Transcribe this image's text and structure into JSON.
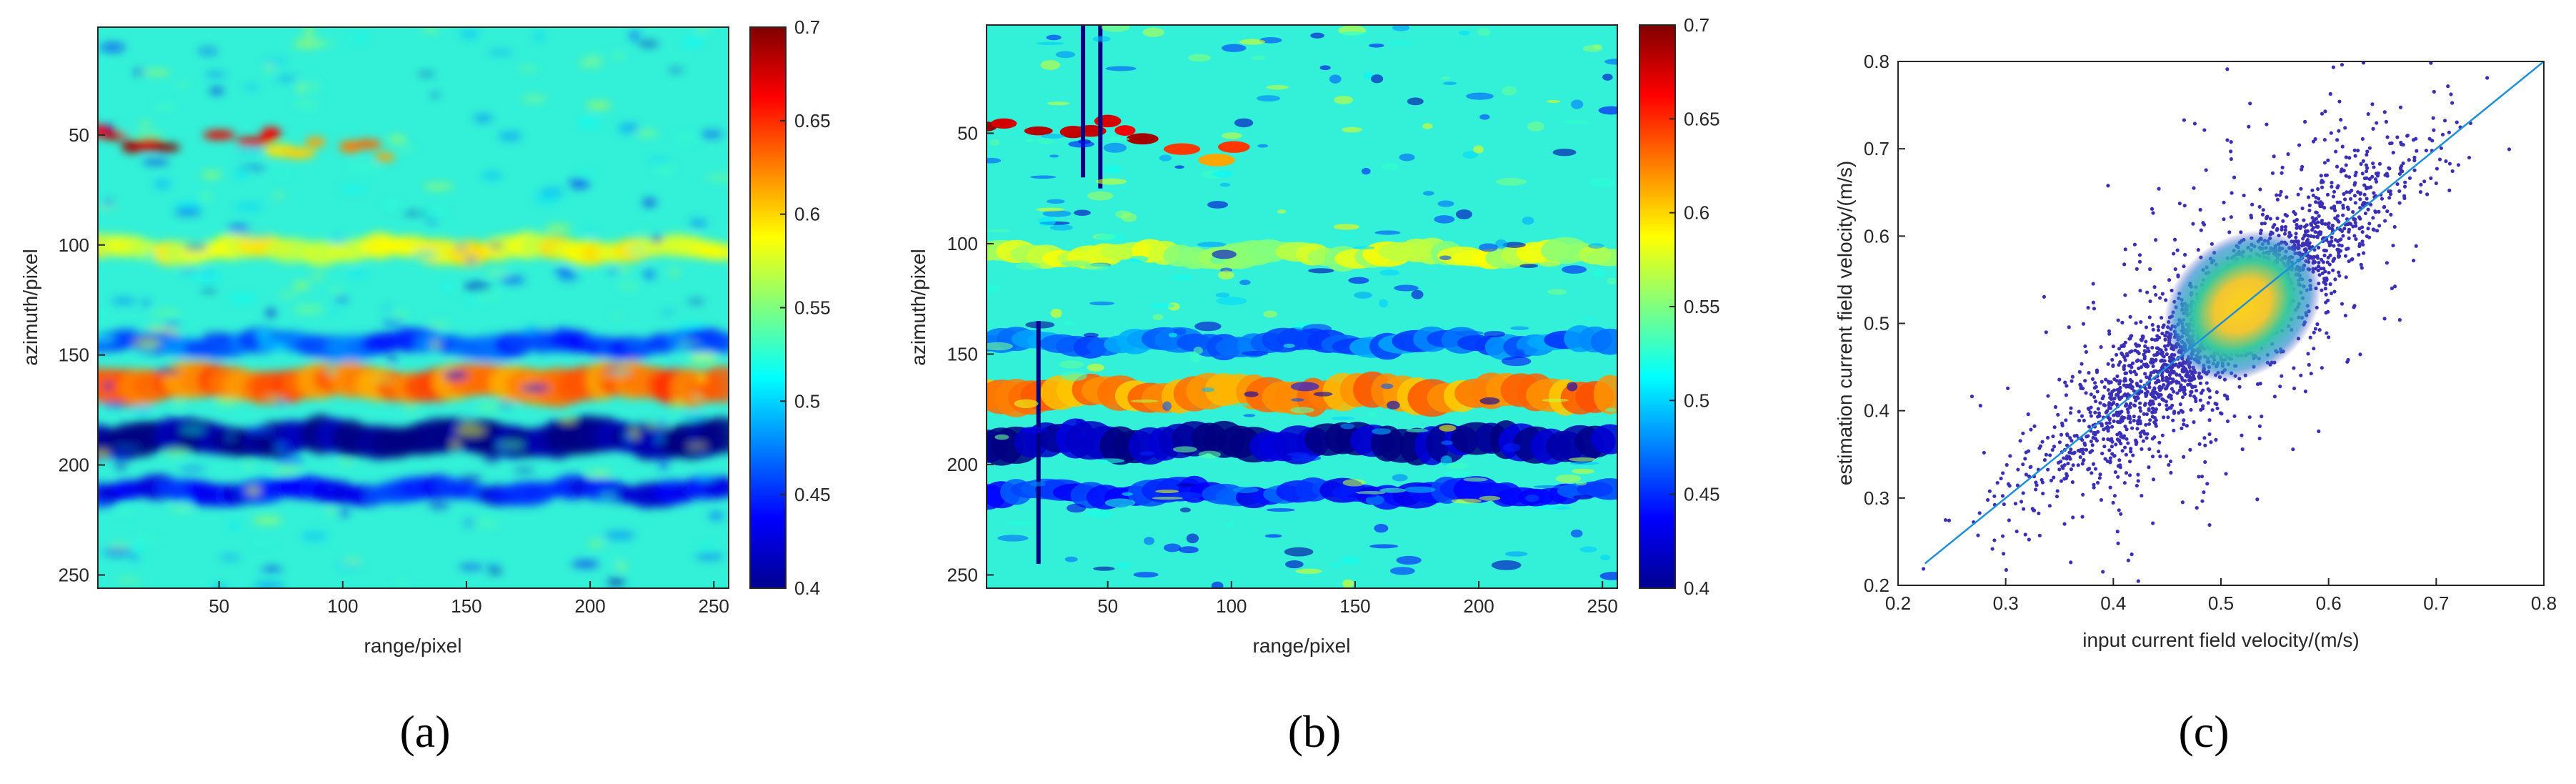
{
  "panels": [
    {
      "label": "(a)"
    },
    {
      "label": "(b)"
    },
    {
      "label": "(c)"
    }
  ],
  "colors": {
    "axis": "#262626",
    "scatter_point": "#3b2fb5",
    "fit_line": "#1f8fd6"
  },
  "chart_data": [
    {
      "type": "heatmap",
      "xlabel": "range/pixel",
      "ylabel": "azimuth/pixel",
      "xlim": [
        1,
        256
      ],
      "ylim": [
        1,
        256
      ],
      "y_reversed": true,
      "xticks": [
        50,
        100,
        150,
        200,
        250
      ],
      "yticks": [
        50,
        100,
        150,
        200,
        250
      ],
      "colormap": "jet",
      "clim": [
        0.4,
        0.7
      ],
      "colorbar_ticks": [
        "0.4",
        "0.45",
        "0.5",
        "0.55",
        "0.6",
        "0.65",
        "0.7"
      ],
      "background_value": 0.5,
      "features": [
        {
          "kind": "band",
          "row": 163,
          "value": 0.63
        },
        {
          "kind": "band",
          "row": 188,
          "value": 0.4
        },
        {
          "kind": "band",
          "row": 212,
          "value": 0.44
        },
        {
          "kind": "band",
          "row": 145,
          "value": 0.46
        },
        {
          "kind": "band",
          "row": 102,
          "value": 0.58
        },
        {
          "kind": "streak",
          "row": 52,
          "col_range": [
            1,
            75
          ],
          "value": 0.7
        },
        {
          "kind": "streak",
          "row": 58,
          "col_range": [
            75,
            130
          ],
          "value": 0.64
        }
      ]
    },
    {
      "type": "heatmap",
      "xlabel": "range/pixel",
      "ylabel": "azimuth/pixel",
      "xlim": [
        1,
        256
      ],
      "ylim": [
        1,
        256
      ],
      "y_reversed": true,
      "xticks": [
        50,
        100,
        150,
        200,
        250
      ],
      "yticks": [
        50,
        100,
        150,
        200,
        250
      ],
      "colormap": "jet",
      "clim": [
        0.4,
        0.7
      ],
      "colorbar_ticks": [
        "0.4",
        "0.45",
        "0.5",
        "0.55",
        "0.6",
        "0.65",
        "0.7"
      ],
      "background_value": 0.5,
      "features": [
        {
          "kind": "band",
          "row": 168,
          "value": 0.62
        },
        {
          "kind": "band",
          "row": 190,
          "value": 0.41
        },
        {
          "kind": "band",
          "row": 213,
          "value": 0.45
        },
        {
          "kind": "band",
          "row": 145,
          "value": 0.47
        },
        {
          "kind": "band",
          "row": 105,
          "value": 0.57
        },
        {
          "kind": "streak",
          "row": 48,
          "col_range": [
            1,
            80
          ],
          "value": 0.7
        },
        {
          "kind": "streak",
          "row": 60,
          "col_range": [
            80,
            120
          ],
          "value": 0.66
        },
        {
          "kind": "vertical",
          "col": 40,
          "row_range": [
            1,
            70
          ],
          "value": 0.4
        },
        {
          "kind": "vertical",
          "col": 47,
          "row_range": [
            1,
            75
          ],
          "value": 0.4
        },
        {
          "kind": "vertical",
          "col": 22,
          "row_range": [
            135,
            245
          ],
          "value": 0.4
        }
      ]
    },
    {
      "type": "scatter",
      "xlabel": "input current field velocity/(m/s)",
      "ylabel": "estimation current field velocity/(m/s)",
      "xlim": [
        0.2,
        0.8
      ],
      "ylim": [
        0.2,
        0.8
      ],
      "xticks": [
        "0.2",
        "0.3",
        "0.4",
        "0.5",
        "0.6",
        "0.7",
        "0.8"
      ],
      "yticks": [
        "0.2",
        "0.3",
        "0.4",
        "0.5",
        "0.6",
        "0.7",
        "0.8"
      ],
      "fit_line": {
        "x": [
          0.225,
          0.8
        ],
        "y": [
          0.225,
          0.8
        ]
      },
      "density_peak": {
        "x": 0.52,
        "y": 0.52
      },
      "point_distribution": {
        "x_range": [
          0.22,
          0.78
        ],
        "y_range": [
          0.2,
          0.8
        ],
        "relation": "y ≈ x"
      }
    }
  ]
}
